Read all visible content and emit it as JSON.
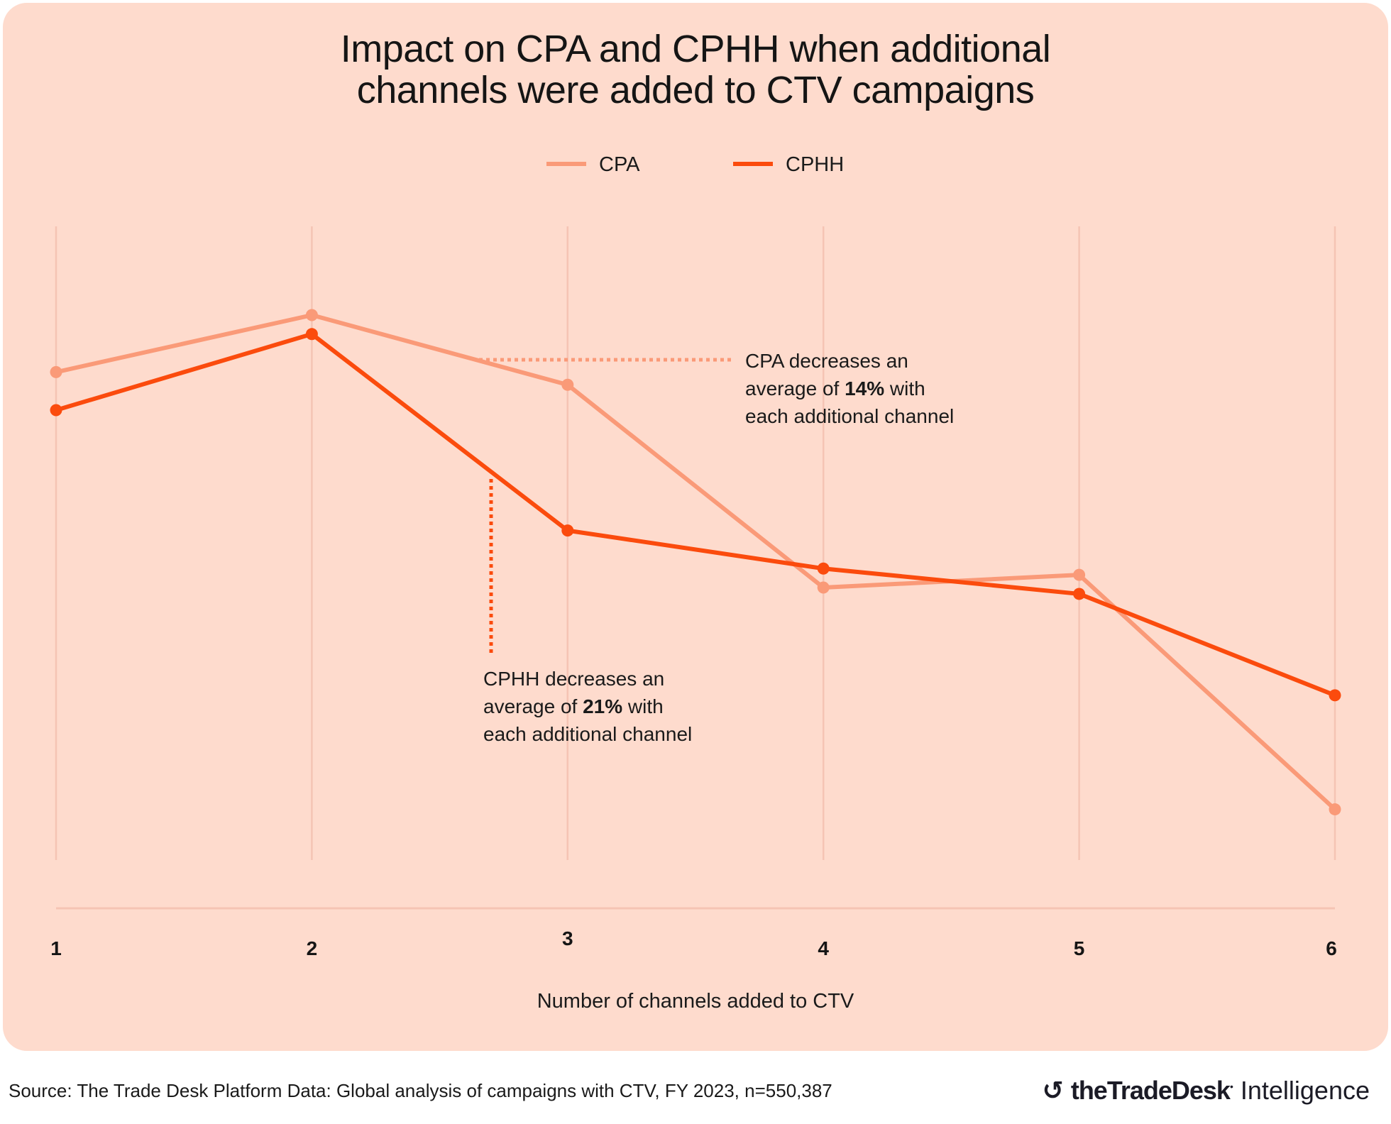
{
  "chart_data": {
    "type": "line",
    "title": "Impact on CPA and CPHH when additional channels were added to CTV campaigns",
    "title_lines": [
      "Impact on CPA and CPHH when additional",
      "channels were added to CTV campaigns"
    ],
    "xlabel": "Number of channels added to CTV",
    "ylabel": "",
    "x": [
      1,
      2,
      3,
      4,
      5,
      6
    ],
    "tick_labels": [
      "1",
      "2",
      "3",
      "4",
      "5",
      "6"
    ],
    "ylim": [
      0,
      100
    ],
    "y_axis_note": "no y-axis printed; values are relative estimates",
    "grid": "vertical",
    "legend_placement": "top-center",
    "series": [
      {
        "name": "CPA",
        "color": "#fa9a78",
        "values": [
          77,
          86,
          75,
          43,
          45,
          8
        ]
      },
      {
        "name": "CPHH",
        "color": "#fb4b0d",
        "values": [
          71,
          83,
          52,
          46,
          42,
          26
        ]
      }
    ],
    "annotations": [
      {
        "series": "CPA",
        "lines": [
          [
            "CPA decreases an"
          ],
          [
            "average of ",
            "14%",
            " with"
          ],
          [
            "each additional channel"
          ]
        ]
      },
      {
        "series": "CPHH",
        "lines": [
          [
            "CPHH decreases an"
          ],
          [
            "average of ",
            "21%",
            " with"
          ],
          [
            "each additional channel"
          ]
        ]
      }
    ]
  },
  "colors": {
    "background": "#fedbcd",
    "grid": "#f5c4b4",
    "text": "#1a1a1a"
  },
  "footer": {
    "source": "Source: The Trade Desk Platform Data: Global analysis of campaigns with CTV, FY 2023, n=550,387",
    "logo_text": "theTradeDesk Intelligence",
    "logo_brand": "theTradeDesk",
    "logo_suffix": "Intelligence"
  }
}
